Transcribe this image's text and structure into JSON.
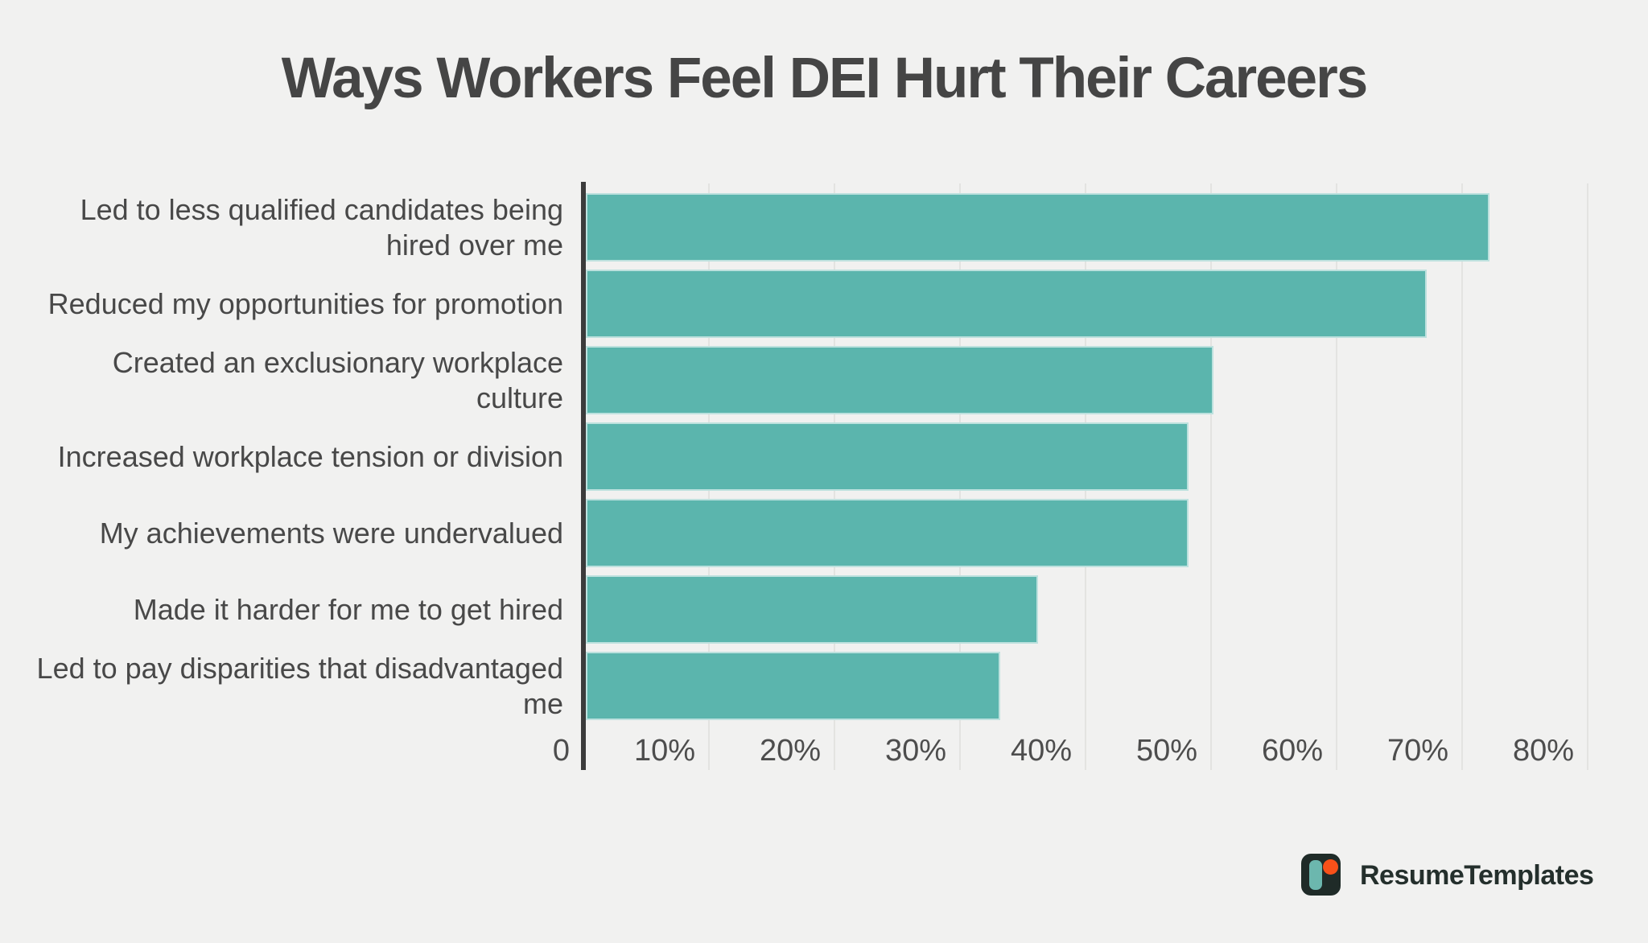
{
  "title": "Ways Workers Feel DEI Hurt Their Careers",
  "branding": {
    "name": "ResumeTemplates",
    "icon": "resumetemplates-logo-icon"
  },
  "colors": {
    "background": "#f1f1f0",
    "bar": "#5bb5ad",
    "axis": "#3b3b3b",
    "gridline": "#e3e3e1",
    "title_text": "#454545",
    "label_text": "#484848",
    "tick_text": "#4d4d4d",
    "logo_dark": "#1f2b28",
    "logo_teal": "#6cb7ae",
    "logo_orange": "#f85119"
  },
  "chart_data": {
    "type": "bar",
    "orientation": "horizontal",
    "title": "Ways Workers Feel DEI Hurt Their Careers",
    "categories": [
      "Led to less qualified candidates being hired over me",
      "Reduced my opportunities for promotion",
      "Created an exclusionary workplace culture",
      "Increased workplace tension or division",
      "My achievements were undervalued",
      "Made it harder for me to get hired",
      "Led to pay disparities that disadvantaged me"
    ],
    "label_lines": [
      [
        "Led to less qualified candidates being",
        "hired over me"
      ],
      [
        "Reduced my opportunities for promotion"
      ],
      [
        "Created an exclusionary workplace",
        "culture"
      ],
      [
        "Increased workplace tension or division"
      ],
      [
        "My achievements were undervalued"
      ],
      [
        "Made it harder for me to get hired"
      ],
      [
        "Led to pay disparities that disadvantaged",
        "me"
      ]
    ],
    "values": [
      72,
      67,
      50,
      48,
      48,
      36,
      33
    ],
    "unit": "%",
    "xlabel": "",
    "ylabel": "",
    "xlim": [
      0,
      80
    ],
    "x_ticks": [
      "0",
      "10%",
      "20%",
      "30%",
      "40%",
      "50%",
      "60%",
      "70%",
      "80%"
    ],
    "grid": "vertical",
    "legend": null
  }
}
